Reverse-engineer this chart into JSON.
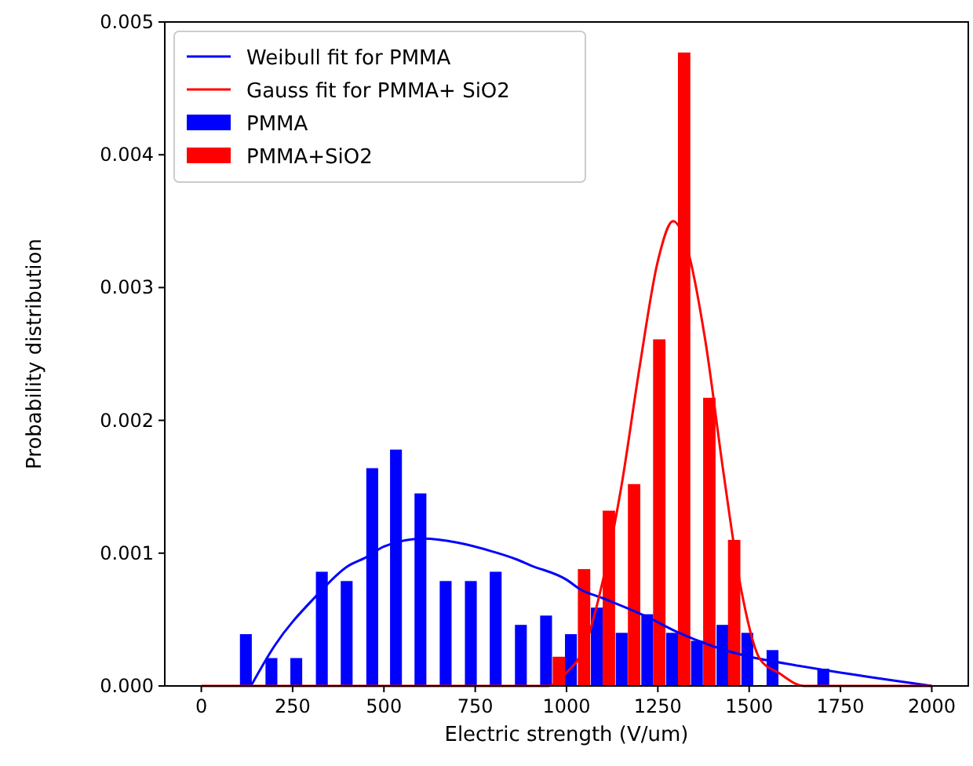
{
  "chart_data": {
    "type": "bar",
    "xlabel": "Electric strength  (V/um)",
    "ylabel": "Probability distribution",
    "xlim": [
      -100,
      2100
    ],
    "xticks": [
      0,
      250,
      500,
      750,
      1000,
      1250,
      1500,
      1750,
      2000
    ],
    "ylim": [
      0,
      0.005
    ],
    "yticks": [
      {
        "value": 0,
        "label": "0.000"
      },
      {
        "value": 0.001,
        "label": "0.001"
      },
      {
        "value": 0.002,
        "label": "0.002"
      },
      {
        "value": 0.003,
        "label": "0.003"
      },
      {
        "value": 0.004,
        "label": "0.004"
      },
      {
        "value": 0.005,
        "label": "0.005"
      }
    ],
    "legend": "top left",
    "grid": false,
    "series": [
      {
        "name": "Weibull fit for PMMA",
        "type": "line",
        "color": "#0000ff",
        "x": [
          136,
          200,
          312,
          400,
          452,
          500,
          610,
          700,
          800,
          866,
          900,
          1000,
          1036,
          1100,
          1221,
          1300,
          1400,
          1500,
          1576,
          1750,
          2000
        ],
        "values": [
          0,
          0.0003,
          0.00067,
          0.0009,
          0.00097,
          0.00105,
          0.00111,
          0.00108,
          0.00101,
          0.00095,
          0.00091,
          0.0008,
          0.00073,
          0.00066,
          0.00052,
          0.00041,
          0.0003,
          0.00022,
          0.00018,
          0.0001,
          0
        ]
      },
      {
        "name": "Gauss fit for PMMA+ SiO2",
        "type": "line",
        "color": "#ff0000",
        "x": [
          0,
          900,
          950,
          1000,
          1050,
          1100,
          1150,
          1200,
          1250,
          1292,
          1330,
          1380,
          1430,
          1480,
          1530,
          1580,
          1650,
          2000
        ],
        "values": [
          0,
          0,
          0,
          0.0001,
          0.0003,
          0.0008,
          0.0015,
          0.0024,
          0.0032,
          0.0035,
          0.0033,
          0.0026,
          0.0016,
          0.0007,
          0.0002,
          0.0001,
          0,
          0
        ]
      },
      {
        "name": "PMMA",
        "color": "#0000ff",
        "x": [
          122,
          192,
          260,
          330,
          398,
          468,
          533,
          600,
          669,
          738,
          806,
          875,
          944,
          1012,
          1083,
          1151,
          1221,
          1289,
          1357,
          1427,
          1495,
          1564,
          1703
        ],
        "values": [
          0.00039,
          0.00021,
          0.00021,
          0.00086,
          0.00079,
          0.00164,
          0.00178,
          0.00145,
          0.00079,
          0.00079,
          0.00086,
          0.00046,
          0.00053,
          0.00039,
          0.00059,
          0.0004,
          0.00054,
          0.0004,
          0.00034,
          0.00046,
          0.0004,
          0.00027,
          0.00013
        ]
      },
      {
        "name": "PMMA+SiO2",
        "color": "#ff0000",
        "x": [
          979,
          1048,
          1116,
          1185,
          1254,
          1322,
          1391,
          1459
        ],
        "values": [
          0.00022,
          0.00088,
          0.00132,
          0.00152,
          0.00261,
          0.00477,
          0.00217,
          0.0011
        ]
      }
    ]
  }
}
